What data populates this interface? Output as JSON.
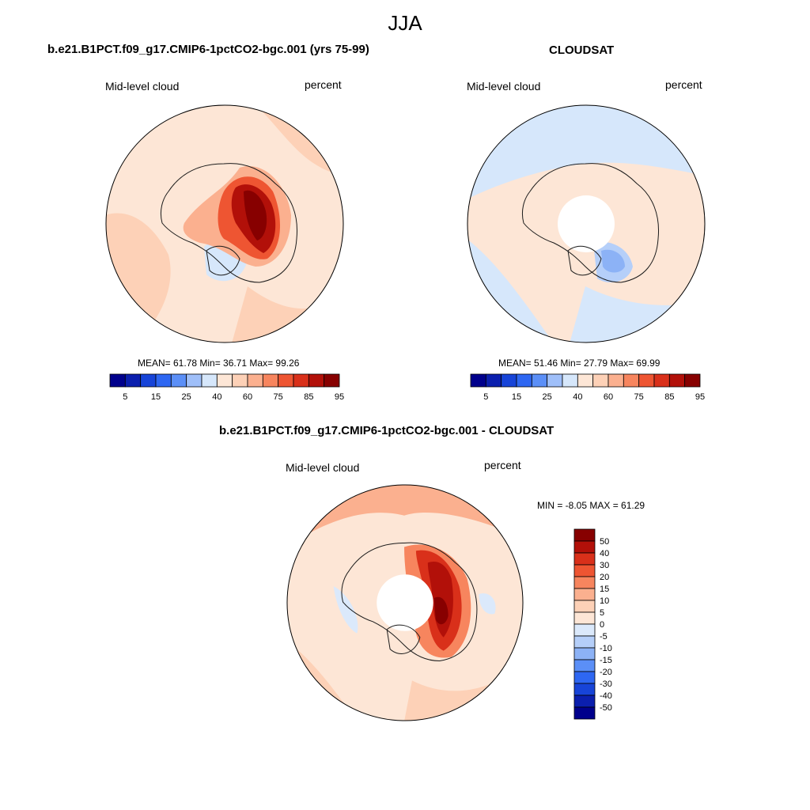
{
  "title": "JJA",
  "colors": {
    "full_scale": [
      "#00008c",
      "#0b1fae",
      "#1744d8",
      "#2e67f2",
      "#5b8ff7",
      "#9fbff9",
      "#d6e7fb",
      "#fde6d6",
      "#fdd1b7",
      "#fbb08f",
      "#f7855e",
      "#ee5532",
      "#d9301a",
      "#b21009",
      "#870000"
    ],
    "diff_scale": [
      "#870000",
      "#b21009",
      "#d9301a",
      "#ee5532",
      "#f7855e",
      "#fbb08f",
      "#fdd1b7",
      "#fde6d6",
      "#dbe9fb",
      "#b5cff9",
      "#8cb2f6",
      "#5b8ff7",
      "#2e67f2",
      "#1744d8",
      "#0b1fae",
      "#00008c"
    ]
  },
  "panels": {
    "model": {
      "title": "b.e21.B1PCT.f09_g17.CMIP6-1pctCO2-bgc.001 (yrs 75-99)",
      "left_label": "Mid-level cloud",
      "right_label": "percent",
      "stats": "MEAN=  61.78  Min=  36.71  Max=  99.26",
      "colorbar_ticks": [
        "5",
        "15",
        "25",
        "40",
        "60",
        "75",
        "85",
        "95"
      ]
    },
    "obs": {
      "title": "CLOUDSAT",
      "left_label": "Mid-level cloud",
      "right_label": "percent",
      "stats": "MEAN=  51.46  Min=  27.79  Max=  69.99",
      "colorbar_ticks": [
        "5",
        "15",
        "25",
        "40",
        "60",
        "75",
        "85",
        "95"
      ]
    },
    "diff": {
      "title": "b.e21.B1PCT.f09_g17.CMIP6-1pctCO2-bgc.001 - CLOUDSAT",
      "left_label": "Mid-level cloud",
      "right_label": "percent",
      "stats": "MIN =  -8.05 MAX =  61.29",
      "colorbar_ticks": [
        "50",
        "40",
        "30",
        "20",
        "15",
        "10",
        "5",
        "0",
        "-5",
        "-10",
        "-15",
        "-20",
        "-30",
        "-40",
        "-50"
      ]
    }
  },
  "chart_data": [
    {
      "type": "heatmap",
      "projection": "south-polar-stereographic",
      "title": "b.e21.B1PCT.f09_g17.CMIP6-1pctCO2-bgc.001 (yrs 75-99)",
      "variable": "Mid-level cloud",
      "units": "percent",
      "mean": 61.78,
      "min": 36.71,
      "max": 99.26,
      "contour_levels": [
        5,
        10,
        15,
        20,
        25,
        30,
        40,
        50,
        60,
        65,
        70,
        75,
        80,
        85,
        90,
        95
      ]
    },
    {
      "type": "heatmap",
      "projection": "south-polar-stereographic",
      "title": "CLOUDSAT",
      "variable": "Mid-level cloud",
      "units": "percent",
      "mean": 51.46,
      "min": 27.79,
      "max": 69.99,
      "contour_levels": [
        5,
        10,
        15,
        20,
        25,
        30,
        40,
        50,
        60,
        65,
        70,
        75,
        80,
        85,
        90,
        95
      ]
    },
    {
      "type": "heatmap",
      "projection": "south-polar-stereographic",
      "title": "b.e21.B1PCT.f09_g17.CMIP6-1pctCO2-bgc.001 - CLOUDSAT",
      "variable": "Mid-level cloud",
      "units": "percent",
      "min": -8.05,
      "max": 61.29,
      "contour_levels": [
        -50,
        -40,
        -30,
        -20,
        -15,
        -10,
        -5,
        0,
        5,
        10,
        15,
        20,
        30,
        40,
        50
      ]
    }
  ]
}
